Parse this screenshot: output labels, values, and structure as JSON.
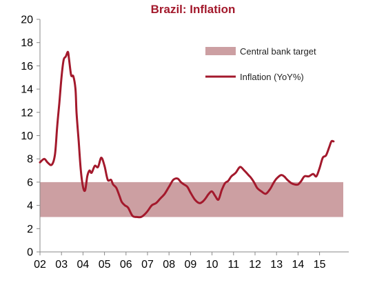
{
  "chart_data": {
    "type": "line",
    "title": "Brazil: Inflation",
    "title_color": "#a3192c",
    "xlabel": "",
    "ylabel": "",
    "xlim": [
      2002.0,
      2015.7
    ],
    "ylim": [
      0,
      20
    ],
    "yticks": [
      0,
      2,
      4,
      6,
      8,
      10,
      12,
      14,
      16,
      18,
      20
    ],
    "xticks": [
      {
        "label": "02",
        "x": 2002
      },
      {
        "label": "03",
        "x": 2003
      },
      {
        "label": "04",
        "x": 2004
      },
      {
        "label": "05",
        "x": 2005
      },
      {
        "label": "06",
        "x": 2006
      },
      {
        "label": "07",
        "x": 2007
      },
      {
        "label": "08",
        "x": 2008
      },
      {
        "label": "09",
        "x": 2009
      },
      {
        "label": "10",
        "x": 2010
      },
      {
        "label": "11",
        "x": 2011
      },
      {
        "label": "12",
        "x": 2012
      },
      {
        "label": "13",
        "x": 2013
      },
      {
        "label": "14",
        "x": 2014
      },
      {
        "label": "15",
        "x": 2015
      }
    ],
    "grid": false,
    "legend_position": "top-right",
    "band": {
      "name": "Central bank target",
      "low": 3,
      "high": 6,
      "color": "#cc9fa2"
    },
    "series": [
      {
        "name": "Inflation (YoY%)",
        "color": "#a3192c",
        "x": [
          2002.0,
          2002.2,
          2002.35,
          2002.55,
          2002.7,
          2002.8,
          2002.9,
          2003.0,
          2003.1,
          2003.2,
          2003.3,
          2003.35,
          2003.45,
          2003.55,
          2003.65,
          2003.7,
          2003.8,
          2003.9,
          2004.0,
          2004.1,
          2004.2,
          2004.3,
          2004.4,
          2004.55,
          2004.7,
          2004.85,
          2005.0,
          2005.15,
          2005.3,
          2005.4,
          2005.55,
          2005.7,
          2005.8,
          2005.95,
          2006.1,
          2006.3,
          2006.5,
          2006.7,
          2006.85,
          2007.0,
          2007.2,
          2007.4,
          2007.6,
          2007.8,
          2008.0,
          2008.2,
          2008.4,
          2008.55,
          2008.7,
          2008.85,
          2009.0,
          2009.2,
          2009.4,
          2009.55,
          2009.7,
          2009.85,
          2010.0,
          2010.15,
          2010.3,
          2010.45,
          2010.6,
          2010.75,
          2010.9,
          2011.1,
          2011.3,
          2011.5,
          2011.7,
          2011.8,
          2011.95,
          2012.1,
          2012.3,
          2012.5,
          2012.7,
          2012.85,
          2013.0,
          2013.2,
          2013.35,
          2013.5,
          2013.7,
          2013.85,
          2014.0,
          2014.15,
          2014.3,
          2014.5,
          2014.7,
          2014.85,
          2015.0,
          2015.15,
          2015.3,
          2015.45,
          2015.55,
          2015.65
        ],
        "values": [
          7.7,
          8.0,
          7.7,
          7.5,
          8.4,
          10.8,
          12.8,
          15.0,
          16.5,
          16.8,
          17.2,
          16.6,
          15.2,
          15.1,
          14.0,
          12.0,
          9.5,
          7.0,
          5.6,
          5.3,
          6.5,
          7.0,
          6.8,
          7.4,
          7.3,
          8.1,
          7.4,
          6.2,
          6.2,
          5.8,
          5.5,
          4.8,
          4.3,
          4.0,
          3.8,
          3.1,
          3.0,
          3.0,
          3.2,
          3.5,
          4.0,
          4.2,
          4.6,
          5.0,
          5.6,
          6.2,
          6.3,
          6.0,
          5.8,
          5.6,
          5.1,
          4.5,
          4.2,
          4.3,
          4.6,
          5.0,
          5.2,
          4.8,
          4.5,
          5.3,
          5.9,
          6.1,
          6.5,
          6.8,
          7.3,
          7.0,
          6.6,
          6.4,
          6.0,
          5.5,
          5.2,
          5.0,
          5.4,
          5.9,
          6.3,
          6.6,
          6.5,
          6.2,
          5.9,
          5.8,
          5.8,
          6.1,
          6.5,
          6.5,
          6.7,
          6.5,
          7.2,
          8.1,
          8.3,
          9.0,
          9.5,
          9.5
        ]
      }
    ]
  }
}
